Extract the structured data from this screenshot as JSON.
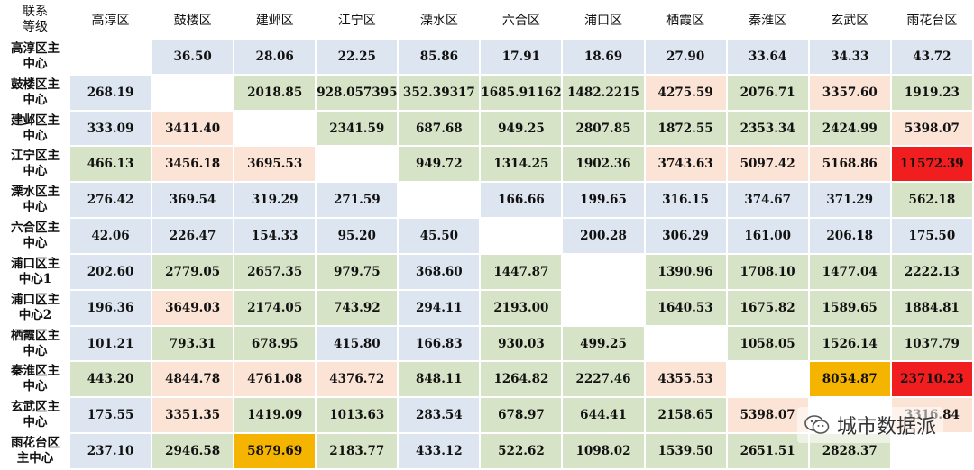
{
  "corner_label": "联系\n等级",
  "columns": [
    "高淳区",
    "鼓楼区",
    "建邺区",
    "江宁区",
    "溧水区",
    "六合区",
    "浦口区",
    "栖霞区",
    "秦淮区",
    "玄武区",
    "雨花台区"
  ],
  "rows": [
    {
      "label": "高淳区主\n中心",
      "cells": [
        {
          "v": "",
          "c": "white"
        },
        {
          "v": "36.50",
          "c": "blue"
        },
        {
          "v": "28.06",
          "c": "blue"
        },
        {
          "v": "22.25",
          "c": "blue"
        },
        {
          "v": "85.86",
          "c": "blue"
        },
        {
          "v": "17.91",
          "c": "blue"
        },
        {
          "v": "18.69",
          "c": "blue"
        },
        {
          "v": "27.90",
          "c": "blue"
        },
        {
          "v": "33.64",
          "c": "blue"
        },
        {
          "v": "34.33",
          "c": "blue"
        },
        {
          "v": "43.72",
          "c": "blue"
        }
      ]
    },
    {
      "label": "鼓楼区主\n中心",
      "cells": [
        {
          "v": "268.19",
          "c": "blue"
        },
        {
          "v": "",
          "c": "white"
        },
        {
          "v": "2018.85",
          "c": "green"
        },
        {
          "v": "928.057395",
          "c": "green"
        },
        {
          "v": "352.39317",
          "c": "green"
        },
        {
          "v": "1685.91162",
          "c": "green"
        },
        {
          "v": "1482.2215",
          "c": "green"
        },
        {
          "v": "4275.59",
          "c": "peach"
        },
        {
          "v": "2076.71",
          "c": "green"
        },
        {
          "v": "3357.60",
          "c": "peach"
        },
        {
          "v": "1919.23",
          "c": "green"
        }
      ]
    },
    {
      "label": "建邺区主\n中心",
      "cells": [
        {
          "v": "333.09",
          "c": "blue"
        },
        {
          "v": "3411.40",
          "c": "peach"
        },
        {
          "v": "",
          "c": "white"
        },
        {
          "v": "2341.59",
          "c": "green"
        },
        {
          "v": "687.68",
          "c": "green"
        },
        {
          "v": "949.25",
          "c": "green"
        },
        {
          "v": "2807.85",
          "c": "green"
        },
        {
          "v": "1872.55",
          "c": "green"
        },
        {
          "v": "2353.34",
          "c": "green"
        },
        {
          "v": "2424.99",
          "c": "green"
        },
        {
          "v": "5398.07",
          "c": "peach"
        }
      ]
    },
    {
      "label": "江宁区主\n中心",
      "cells": [
        {
          "v": "466.13",
          "c": "green"
        },
        {
          "v": "3456.18",
          "c": "peach"
        },
        {
          "v": "3695.53",
          "c": "peach"
        },
        {
          "v": "",
          "c": "white"
        },
        {
          "v": "949.72",
          "c": "green"
        },
        {
          "v": "1314.25",
          "c": "green"
        },
        {
          "v": "1902.36",
          "c": "green"
        },
        {
          "v": "3743.63",
          "c": "peach"
        },
        {
          "v": "5097.42",
          "c": "peach"
        },
        {
          "v": "5168.86",
          "c": "peach"
        },
        {
          "v": "11572.39",
          "c": "red"
        }
      ]
    },
    {
      "label": "溧水区主\n中心",
      "cells": [
        {
          "v": "276.42",
          "c": "blue"
        },
        {
          "v": "369.54",
          "c": "blue"
        },
        {
          "v": "319.29",
          "c": "blue"
        },
        {
          "v": "271.59",
          "c": "blue"
        },
        {
          "v": "",
          "c": "white"
        },
        {
          "v": "166.66",
          "c": "blue"
        },
        {
          "v": "199.65",
          "c": "blue"
        },
        {
          "v": "316.15",
          "c": "blue"
        },
        {
          "v": "374.67",
          "c": "blue"
        },
        {
          "v": "371.29",
          "c": "blue"
        },
        {
          "v": "562.18",
          "c": "green"
        }
      ]
    },
    {
      "label": "六合区主\n中心",
      "cells": [
        {
          "v": "42.06",
          "c": "blue"
        },
        {
          "v": "226.47",
          "c": "blue"
        },
        {
          "v": "154.33",
          "c": "blue"
        },
        {
          "v": "95.20",
          "c": "blue"
        },
        {
          "v": "45.50",
          "c": "blue"
        },
        {
          "v": "",
          "c": "white"
        },
        {
          "v": "200.28",
          "c": "blue"
        },
        {
          "v": "306.29",
          "c": "blue"
        },
        {
          "v": "161.00",
          "c": "blue"
        },
        {
          "v": "206.18",
          "c": "blue"
        },
        {
          "v": "175.50",
          "c": "blue"
        }
      ]
    },
    {
      "label": "浦口区主\n中心1",
      "cells": [
        {
          "v": "202.60",
          "c": "blue"
        },
        {
          "v": "2779.05",
          "c": "green"
        },
        {
          "v": "2657.35",
          "c": "green"
        },
        {
          "v": "979.75",
          "c": "green"
        },
        {
          "v": "368.60",
          "c": "blue"
        },
        {
          "v": "1447.87",
          "c": "green"
        },
        {
          "v": "",
          "c": "white"
        },
        {
          "v": "1390.96",
          "c": "green"
        },
        {
          "v": "1708.10",
          "c": "green"
        },
        {
          "v": "1477.04",
          "c": "green"
        },
        {
          "v": "2222.13",
          "c": "green"
        }
      ]
    },
    {
      "label": "浦口区主\n中心2",
      "cells": [
        {
          "v": "196.36",
          "c": "blue"
        },
        {
          "v": "3649.03",
          "c": "peach"
        },
        {
          "v": "2174.05",
          "c": "green"
        },
        {
          "v": "743.92",
          "c": "green"
        },
        {
          "v": "294.11",
          "c": "blue"
        },
        {
          "v": "2193.00",
          "c": "green"
        },
        {
          "v": "",
          "c": "white"
        },
        {
          "v": "1640.53",
          "c": "green"
        },
        {
          "v": "1675.82",
          "c": "green"
        },
        {
          "v": "1589.65",
          "c": "green"
        },
        {
          "v": "1884.81",
          "c": "green"
        }
      ]
    },
    {
      "label": "栖霞区主\n中心",
      "cells": [
        {
          "v": "101.21",
          "c": "blue"
        },
        {
          "v": "793.31",
          "c": "green"
        },
        {
          "v": "678.95",
          "c": "green"
        },
        {
          "v": "415.80",
          "c": "blue"
        },
        {
          "v": "166.83",
          "c": "blue"
        },
        {
          "v": "930.03",
          "c": "green"
        },
        {
          "v": "499.25",
          "c": "green"
        },
        {
          "v": "",
          "c": "white"
        },
        {
          "v": "1058.05",
          "c": "green"
        },
        {
          "v": "1526.14",
          "c": "green"
        },
        {
          "v": "1037.79",
          "c": "green"
        }
      ]
    },
    {
      "label": "秦淮区主\n中心",
      "cells": [
        {
          "v": "443.20",
          "c": "green"
        },
        {
          "v": "4844.78",
          "c": "peach"
        },
        {
          "v": "4761.08",
          "c": "peach"
        },
        {
          "v": "4376.72",
          "c": "peach"
        },
        {
          "v": "848.11",
          "c": "green"
        },
        {
          "v": "1264.82",
          "c": "green"
        },
        {
          "v": "2227.46",
          "c": "green"
        },
        {
          "v": "4355.53",
          "c": "peach"
        },
        {
          "v": "",
          "c": "white"
        },
        {
          "v": "8054.87",
          "c": "orange"
        },
        {
          "v": "23710.23",
          "c": "red"
        }
      ]
    },
    {
      "label": "玄武区主\n中心",
      "cells": [
        {
          "v": "175.55",
          "c": "blue"
        },
        {
          "v": "3351.35",
          "c": "peach"
        },
        {
          "v": "1419.09",
          "c": "green"
        },
        {
          "v": "1013.63",
          "c": "green"
        },
        {
          "v": "283.54",
          "c": "blue"
        },
        {
          "v": "678.97",
          "c": "green"
        },
        {
          "v": "644.41",
          "c": "green"
        },
        {
          "v": "2158.65",
          "c": "green"
        },
        {
          "v": "5398.07",
          "c": "peach"
        },
        {
          "v": "",
          "c": "white"
        },
        {
          "v": "3316.84",
          "c": "peach"
        }
      ]
    },
    {
      "label": "雨花台区\n主中心",
      "cells": [
        {
          "v": "237.10",
          "c": "blue"
        },
        {
          "v": "2946.58",
          "c": "green"
        },
        {
          "v": "5879.69",
          "c": "orange"
        },
        {
          "v": "2183.77",
          "c": "green"
        },
        {
          "v": "433.12",
          "c": "blue"
        },
        {
          "v": "522.62",
          "c": "green"
        },
        {
          "v": "1098.02",
          "c": "green"
        },
        {
          "v": "1539.50",
          "c": "green"
        },
        {
          "v": "2651.51",
          "c": "green"
        },
        {
          "v": "2828.37",
          "c": "green"
        },
        {
          "v": "",
          "c": "white"
        }
      ]
    }
  ],
  "colors": {
    "blue": "#dde6f0",
    "green": "#d7e3c6",
    "peach": "#fbe3d5",
    "orange": "#f5b400",
    "red": "#f01e1e"
  },
  "watermark": {
    "icon": "wechat-icon",
    "text": "城市数据派"
  }
}
